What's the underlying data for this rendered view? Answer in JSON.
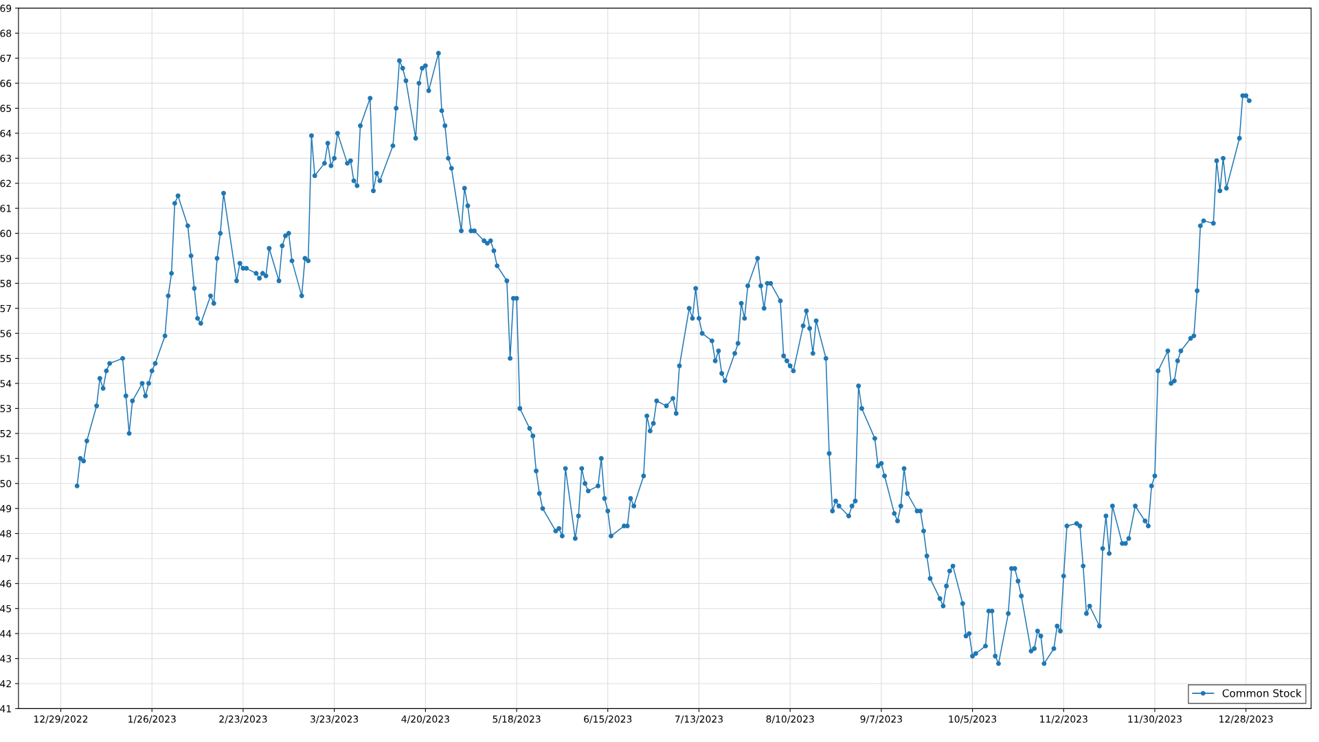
{
  "chart_data": {
    "type": "line",
    "x": [
      "2023-01-03",
      "2023-01-04",
      "2023-01-05",
      "2023-01-06",
      "2023-01-09",
      "2023-01-10",
      "2023-01-11",
      "2023-01-12",
      "2023-01-13",
      "2023-01-17",
      "2023-01-18",
      "2023-01-19",
      "2023-01-20",
      "2023-01-23",
      "2023-01-24",
      "2023-01-25",
      "2023-01-26",
      "2023-01-27",
      "2023-01-30",
      "2023-01-31",
      "2023-02-01",
      "2023-02-02",
      "2023-02-03",
      "2023-02-06",
      "2023-02-07",
      "2023-02-08",
      "2023-02-09",
      "2023-02-10",
      "2023-02-13",
      "2023-02-14",
      "2023-02-15",
      "2023-02-16",
      "2023-02-17",
      "2023-02-21",
      "2023-02-22",
      "2023-02-23",
      "2023-02-24",
      "2023-02-27",
      "2023-02-28",
      "2023-03-01",
      "2023-03-02",
      "2023-03-03",
      "2023-03-06",
      "2023-03-07",
      "2023-03-08",
      "2023-03-09",
      "2023-03-10",
      "2023-03-13",
      "2023-03-14",
      "2023-03-15",
      "2023-03-16",
      "2023-03-17",
      "2023-03-20",
      "2023-03-21",
      "2023-03-22",
      "2023-03-23",
      "2023-03-24",
      "2023-03-27",
      "2023-03-28",
      "2023-03-29",
      "2023-03-30",
      "2023-03-31",
      "2023-04-03",
      "2023-04-04",
      "2023-04-05",
      "2023-04-06",
      "2023-04-10",
      "2023-04-11",
      "2023-04-12",
      "2023-04-13",
      "2023-04-14",
      "2023-04-17",
      "2023-04-18",
      "2023-04-19",
      "2023-04-20",
      "2023-04-21",
      "2023-04-24",
      "2023-04-25",
      "2023-04-26",
      "2023-04-27",
      "2023-04-28",
      "2023-05-01",
      "2023-05-02",
      "2023-05-03",
      "2023-05-04",
      "2023-05-05",
      "2023-05-08",
      "2023-05-09",
      "2023-05-10",
      "2023-05-11",
      "2023-05-12",
      "2023-05-15",
      "2023-05-16",
      "2023-05-17",
      "2023-05-18",
      "2023-05-19",
      "2023-05-22",
      "2023-05-23",
      "2023-05-24",
      "2023-05-25",
      "2023-05-26",
      "2023-05-30",
      "2023-05-31",
      "2023-06-01",
      "2023-06-02",
      "2023-06-05",
      "2023-06-06",
      "2023-06-07",
      "2023-06-08",
      "2023-06-09",
      "2023-06-12",
      "2023-06-13",
      "2023-06-14",
      "2023-06-15",
      "2023-06-16",
      "2023-06-20",
      "2023-06-21",
      "2023-06-22",
      "2023-06-23",
      "2023-06-26",
      "2023-06-27",
      "2023-06-28",
      "2023-06-29",
      "2023-06-30",
      "2023-07-03",
      "2023-07-05",
      "2023-07-06",
      "2023-07-07",
      "2023-07-10",
      "2023-07-11",
      "2023-07-12",
      "2023-07-13",
      "2023-07-14",
      "2023-07-17",
      "2023-07-18",
      "2023-07-19",
      "2023-07-20",
      "2023-07-21",
      "2023-07-24",
      "2023-07-25",
      "2023-07-26",
      "2023-07-27",
      "2023-07-28",
      "2023-07-31",
      "2023-08-01",
      "2023-08-02",
      "2023-08-03",
      "2023-08-04",
      "2023-08-07",
      "2023-08-08",
      "2023-08-09",
      "2023-08-10",
      "2023-08-11",
      "2023-08-14",
      "2023-08-15",
      "2023-08-16",
      "2023-08-17",
      "2023-08-18",
      "2023-08-21",
      "2023-08-22",
      "2023-08-23",
      "2023-08-24",
      "2023-08-25",
      "2023-08-28",
      "2023-08-29",
      "2023-08-30",
      "2023-08-31",
      "2023-09-01",
      "2023-09-05",
      "2023-09-06",
      "2023-09-07",
      "2023-09-08",
      "2023-09-11",
      "2023-09-12",
      "2023-09-13",
      "2023-09-14",
      "2023-09-15",
      "2023-09-18",
      "2023-09-19",
      "2023-09-20",
      "2023-09-21",
      "2023-09-22",
      "2023-09-25",
      "2023-09-26",
      "2023-09-27",
      "2023-09-28",
      "2023-09-29",
      "2023-10-02",
      "2023-10-03",
      "2023-10-04",
      "2023-10-05",
      "2023-10-06",
      "2023-10-09",
      "2023-10-10",
      "2023-10-11",
      "2023-10-12",
      "2023-10-13",
      "2023-10-16",
      "2023-10-17",
      "2023-10-18",
      "2023-10-19",
      "2023-10-20",
      "2023-10-23",
      "2023-10-24",
      "2023-10-25",
      "2023-10-26",
      "2023-10-27",
      "2023-10-30",
      "2023-10-31",
      "2023-11-01",
      "2023-11-02",
      "2023-11-03",
      "2023-11-06",
      "2023-11-07",
      "2023-11-08",
      "2023-11-09",
      "2023-11-10",
      "2023-11-13",
      "2023-11-14",
      "2023-11-15",
      "2023-11-16",
      "2023-11-17",
      "2023-11-20",
      "2023-11-21",
      "2023-11-22",
      "2023-11-24",
      "2023-11-27",
      "2023-11-28",
      "2023-11-29",
      "2023-11-30",
      "2023-12-01",
      "2023-12-04",
      "2023-12-05",
      "2023-12-06",
      "2023-12-07",
      "2023-12-08",
      "2023-12-11",
      "2023-12-12",
      "2023-12-13",
      "2023-12-14",
      "2023-12-15",
      "2023-12-18",
      "2023-12-19",
      "2023-12-20",
      "2023-12-21",
      "2023-12-22",
      "2023-12-26",
      "2023-12-27",
      "2023-12-28",
      "2023-12-29"
    ],
    "series": [
      {
        "name": "Common Stock",
        "color": "#1f77b4",
        "values": [
          49.9,
          51.0,
          50.9,
          51.7,
          53.1,
          54.2,
          53.8,
          54.5,
          54.8,
          55.0,
          53.5,
          52.0,
          53.3,
          54.0,
          53.5,
          54.0,
          54.5,
          54.8,
          55.9,
          57.5,
          58.4,
          61.2,
          61.5,
          60.3,
          59.1,
          57.8,
          56.6,
          56.4,
          57.5,
          57.2,
          59.0,
          60.0,
          61.6,
          58.1,
          58.8,
          58.6,
          58.6,
          58.4,
          58.2,
          58.4,
          58.3,
          59.4,
          58.1,
          59.5,
          59.9,
          60.0,
          58.9,
          57.5,
          59.0,
          58.9,
          63.9,
          62.3,
          62.8,
          63.6,
          62.7,
          63.0,
          64.0,
          62.8,
          62.9,
          62.1,
          61.9,
          64.3,
          65.4,
          61.7,
          62.4,
          62.1,
          63.5,
          65.0,
          66.9,
          66.6,
          66.1,
          63.8,
          66.0,
          66.6,
          66.7,
          65.7,
          67.2,
          64.9,
          64.3,
          63.0,
          62.6,
          60.1,
          61.8,
          61.1,
          60.1,
          60.1,
          59.7,
          59.6,
          59.7,
          59.3,
          58.7,
          58.1,
          55.0,
          57.4,
          57.4,
          53.0,
          52.2,
          51.9,
          50.5,
          49.6,
          49.0,
          48.1,
          48.2,
          47.9,
          50.6,
          47.8,
          48.7,
          50.6,
          50.0,
          49.7,
          49.9,
          51.0,
          49.4,
          48.9,
          47.9,
          48.3,
          48.3,
          49.4,
          49.1,
          50.3,
          52.7,
          52.1,
          52.4,
          53.3,
          53.1,
          53.4,
          52.8,
          54.7,
          57.0,
          56.6,
          57.8,
          56.6,
          56.0,
          55.7,
          54.9,
          55.3,
          54.4,
          54.1,
          55.2,
          55.6,
          57.2,
          56.6,
          57.9,
          59.0,
          57.9,
          57.0,
          58.0,
          58.0,
          57.3,
          55.1,
          54.9,
          54.7,
          54.5,
          56.3,
          56.9,
          56.2,
          55.2,
          56.5,
          55.0,
          51.2,
          48.9,
          49.3,
          49.1,
          48.7,
          49.1,
          49.3,
          53.9,
          53.0,
          51.8,
          50.7,
          50.8,
          50.3,
          48.8,
          48.5,
          49.1,
          50.6,
          49.6,
          48.9,
          48.9,
          48.1,
          47.1,
          46.2,
          45.4,
          45.1,
          45.9,
          46.5,
          46.7,
          45.2,
          43.9,
          44.0,
          43.1,
          43.2,
          43.5,
          44.9,
          44.9,
          43.1,
          42.8,
          44.8,
          46.6,
          46.6,
          46.1,
          45.5,
          43.3,
          43.4,
          44.1,
          43.9,
          42.8,
          43.4,
          44.3,
          44.1,
          46.3,
          48.3,
          48.4,
          48.3,
          46.7,
          44.8,
          45.1,
          44.3,
          47.4,
          48.7,
          47.2,
          49.1,
          47.6,
          47.6,
          47.8,
          49.1,
          48.5,
          48.3,
          49.9,
          50.3,
          54.5,
          55.3,
          54.0,
          54.1,
          54.9,
          55.3,
          55.8,
          55.9,
          57.7,
          60.3,
          60.5,
          60.4,
          62.9,
          61.7,
          63.0,
          61.8,
          63.8,
          65.5,
          65.5,
          65.3
        ]
      }
    ],
    "xlim": [
      "2022-12-16",
      "2024-01-17"
    ],
    "xticks": [
      {
        "value": "2022-12-29",
        "label": "12/29/2022"
      },
      {
        "value": "2023-01-26",
        "label": "1/26/2023"
      },
      {
        "value": "2023-02-23",
        "label": "2/23/2023"
      },
      {
        "value": "2023-03-23",
        "label": "3/23/2023"
      },
      {
        "value": "2023-04-20",
        "label": "4/20/2023"
      },
      {
        "value": "2023-05-18",
        "label": "5/18/2023"
      },
      {
        "value": "2023-06-15",
        "label": "6/15/2023"
      },
      {
        "value": "2023-07-13",
        "label": "7/13/2023"
      },
      {
        "value": "2023-08-10",
        "label": "8/10/2023"
      },
      {
        "value": "2023-09-07",
        "label": "9/7/2023"
      },
      {
        "value": "2023-10-05",
        "label": "10/5/2023"
      },
      {
        "value": "2023-11-02",
        "label": "11/2/2023"
      },
      {
        "value": "2023-11-30",
        "label": "11/30/2023"
      },
      {
        "value": "2023-12-28",
        "label": "12/28/2023"
      }
    ],
    "ylim": [
      41,
      69
    ],
    "yticks": [
      41,
      42,
      43,
      44,
      45,
      46,
      47,
      48,
      49,
      50,
      51,
      52,
      53,
      54,
      55,
      56,
      57,
      58,
      59,
      60,
      61,
      62,
      63,
      64,
      65,
      66,
      67,
      68,
      69
    ],
    "grid": true,
    "legend": "bottom right",
    "marker": "circle",
    "line_style": "solid"
  }
}
